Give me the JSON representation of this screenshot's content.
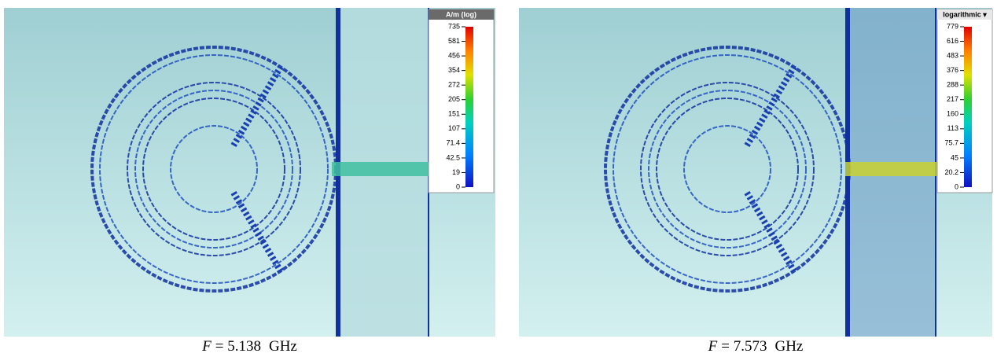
{
  "panels": [
    {
      "legend_title": "A/m (log)",
      "legend_ticks": [
        "735",
        "581",
        "456",
        "354",
        "272",
        "205",
        "151",
        "107",
        "71.4",
        "42.5",
        "19",
        "0"
      ],
      "caption": {
        "symbol": "F",
        "value": "= 5.138",
        "unit": "GHz"
      }
    },
    {
      "legend_title": "logarithmic ▾",
      "legend_ticks": [
        "779",
        "616",
        "483",
        "376",
        "288",
        "217",
        "160",
        "113",
        "75.7",
        "45",
        "20.2",
        "0"
      ],
      "caption": {
        "symbol": "F",
        "value": "= 7.573",
        "unit": "GHz"
      }
    }
  ]
}
